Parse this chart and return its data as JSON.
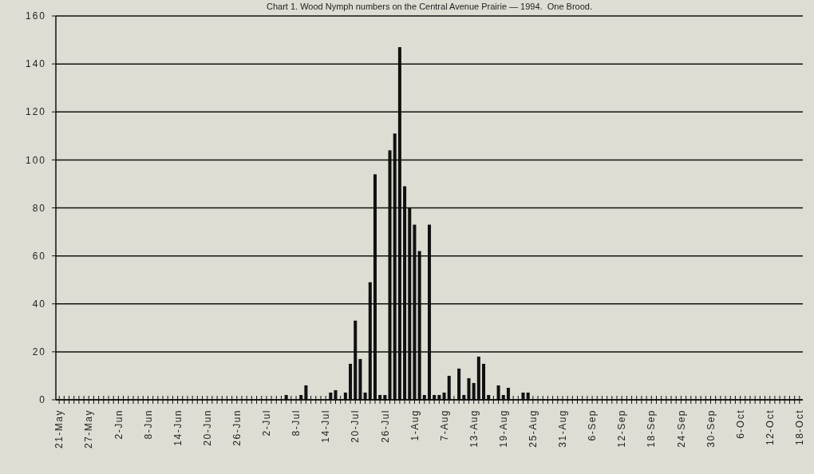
{
  "chart_data": {
    "type": "bar",
    "title": "Chart 1. Wood Nymph numbers on the Central Avenue Prairie — 1994.  One Brood.",
    "categories": [
      "21-May",
      null,
      null,
      null,
      null,
      null,
      "27-May",
      null,
      null,
      null,
      null,
      null,
      "2-Jun",
      null,
      null,
      null,
      null,
      null,
      "8-Jun",
      null,
      null,
      null,
      null,
      null,
      "14-Jun",
      null,
      null,
      null,
      null,
      null,
      "20-Jun",
      null,
      null,
      null,
      null,
      null,
      "26-Jun",
      null,
      null,
      null,
      null,
      null,
      "2-Jul",
      null,
      null,
      null,
      null,
      null,
      "8-Jul",
      null,
      null,
      null,
      null,
      null,
      "14-Jul",
      null,
      null,
      null,
      null,
      null,
      "20-Jul",
      null,
      null,
      null,
      null,
      null,
      "26-Jul",
      null,
      null,
      null,
      null,
      null,
      "1-Aug",
      null,
      null,
      null,
      null,
      null,
      "7-Aug",
      null,
      null,
      null,
      null,
      null,
      "13-Aug",
      null,
      null,
      null,
      null,
      null,
      "19-Aug",
      null,
      null,
      null,
      null,
      null,
      "25-Aug",
      null,
      null,
      null,
      null,
      null,
      "31-Aug",
      null,
      null,
      null,
      null,
      null,
      "6-Sep",
      null,
      null,
      null,
      null,
      null,
      "12-Sep",
      null,
      null,
      null,
      null,
      null,
      "18-Sep",
      null,
      null,
      null,
      null,
      null,
      "24-Sep",
      null,
      null,
      null,
      null,
      null,
      "30-Sep",
      null,
      null,
      null,
      null,
      null,
      "6-Oct",
      null,
      null,
      null,
      null,
      null,
      "12-Oct",
      null,
      null,
      null,
      null,
      null,
      "18-Oct"
    ],
    "values": [
      0,
      0,
      0,
      0,
      0,
      0,
      0,
      0,
      0,
      0,
      0,
      0,
      0,
      0,
      0,
      0,
      0,
      0,
      0,
      0,
      0,
      0,
      0,
      0,
      0,
      0,
      0,
      0,
      0,
      0,
      0,
      0,
      0,
      0,
      0,
      0,
      0,
      0,
      0,
      0,
      0,
      0,
      0,
      0,
      0,
      0,
      2,
      0,
      0,
      2,
      6,
      0,
      0,
      0,
      0,
      3,
      4,
      0,
      3,
      15,
      33,
      17,
      3,
      49,
      94,
      2,
      2,
      104,
      111,
      147,
      89,
      80,
      73,
      62,
      2,
      73,
      2,
      2,
      3,
      10,
      null,
      13,
      2,
      9,
      7,
      18,
      15,
      2,
      0,
      6,
      2,
      5,
      null,
      0,
      3,
      3,
      0,
      0,
      0,
      0,
      0,
      0,
      0,
      0,
      0,
      0,
      0,
      0,
      0,
      0,
      0,
      0,
      0,
      0,
      0,
      0,
      0,
      0,
      0,
      0,
      0,
      0,
      0,
      0,
      0,
      0,
      0,
      0,
      0,
      0,
      0,
      0,
      0,
      0,
      0,
      0,
      0,
      0,
      0,
      0,
      0,
      0,
      0,
      0,
      0,
      0,
      0,
      0,
      0,
      0,
      0
    ],
    "color": "#111111",
    "ylim": [
      0,
      160
    ],
    "yticks": [
      0,
      20,
      40,
      60,
      80,
      100,
      120,
      140,
      160
    ],
    "grid": "y"
  }
}
